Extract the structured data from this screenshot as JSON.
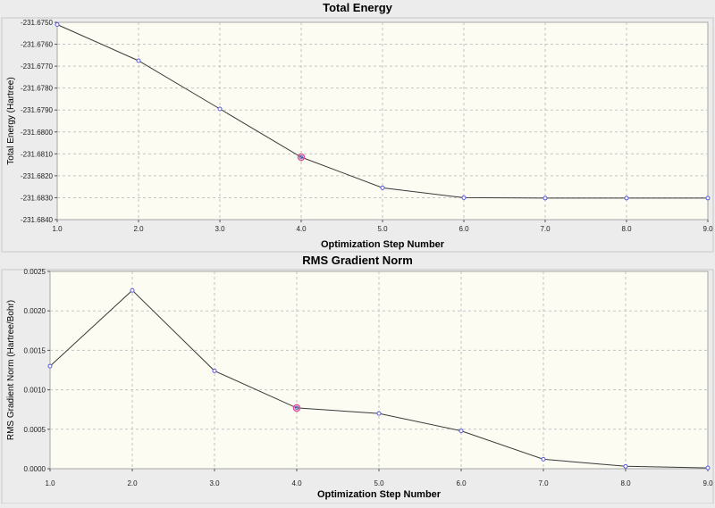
{
  "colors": {
    "window_bg": "#ececec",
    "plot_bg": "#fcfcf2",
    "grid": "#c4c4c4",
    "line": "#3a3a3a",
    "marker": "#5a5ae0",
    "highlight_marker": "#e0508a"
  },
  "chart_data": [
    {
      "type": "line",
      "title": "Total Energy",
      "xlabel": "Optimization Step Number",
      "ylabel": "Total Energy (Hartree)",
      "xlim": [
        1.0,
        9.0
      ],
      "ylim": [
        -231.684,
        -231.675
      ],
      "x_ticks": [
        "1.0",
        "2.0",
        "3.0",
        "4.0",
        "5.0",
        "6.0",
        "7.0",
        "8.0",
        "9.0"
      ],
      "y_ticks": [
        "-231.6750",
        "-231.6760",
        "-231.6770",
        "-231.6780",
        "-231.6790",
        "-231.6800",
        "-231.6810",
        "-231.6820",
        "-231.6830",
        "-231.6840"
      ],
      "grid": true,
      "highlighted_step": 4,
      "x": [
        1,
        2,
        3,
        4,
        5,
        6,
        7,
        8,
        9
      ],
      "values": [
        -231.6751,
        -231.67675,
        -231.67895,
        -231.68115,
        -231.68255,
        -231.683,
        -231.68302,
        -231.68302,
        -231.68302
      ]
    },
    {
      "type": "line",
      "title": "RMS Gradient Norm",
      "xlabel": "Optimization Step Number",
      "ylabel": "RMS Gradient Norm (Hartree/Bohr)",
      "xlim": [
        1.0,
        9.0
      ],
      "ylim": [
        0,
        0.0025
      ],
      "x_ticks": [
        "1.0",
        "2.0",
        "3.0",
        "4.0",
        "5.0",
        "6.0",
        "7.0",
        "8.0",
        "9.0"
      ],
      "y_ticks": [
        "0.0025",
        "0.0020",
        "0.0015",
        "0.0010",
        "0.0005",
        "0.0000"
      ],
      "grid": true,
      "highlighted_step": 4,
      "x": [
        1,
        2,
        3,
        4,
        5,
        6,
        7,
        8,
        9
      ],
      "values": [
        0.0013,
        0.00226,
        0.00124,
        0.00077,
        0.0007,
        0.00048,
        0.00012,
        3e-05,
        1e-05
      ]
    }
  ]
}
